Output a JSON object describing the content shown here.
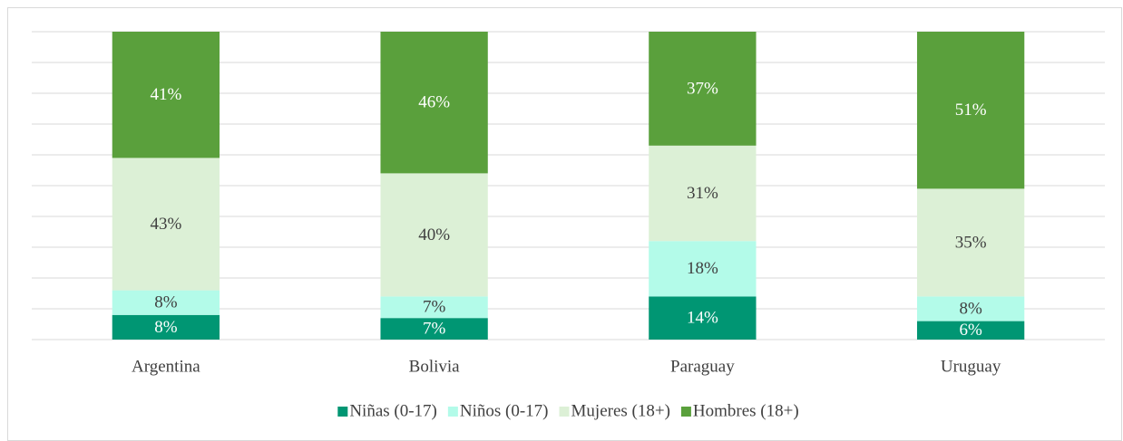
{
  "chart_data": {
    "type": "stacked_bar",
    "categories": [
      "Argentina",
      "Bolivia",
      "Paraguay",
      "Uruguay"
    ],
    "series": [
      {
        "name": "Niñas (0-17)",
        "color": "#009673",
        "values": [
          8,
          7,
          14,
          6
        ],
        "value_labels": [
          "8%",
          "7%",
          "14%",
          "6%"
        ]
      },
      {
        "name": "Niños (0-17)",
        "color": "#b3fbe9",
        "values": [
          8,
          7,
          18,
          8
        ],
        "value_labels": [
          "8%",
          "7%",
          "18%",
          "8%"
        ]
      },
      {
        "name": "Mujeres (18+)",
        "color": "#dcf0d6",
        "values": [
          43,
          40,
          31,
          35
        ],
        "value_labels": [
          "43%",
          "40%",
          "31%",
          "35%"
        ]
      },
      {
        "name": "Hombres (18+)",
        "color": "#5aa03c",
        "values": [
          41,
          46,
          37,
          51
        ],
        "value_labels": [
          "41%",
          "46%",
          "37%",
          "51%"
        ]
      }
    ],
    "ylim": [
      0,
      100
    ],
    "yticks": [
      0,
      10,
      20,
      30,
      40,
      50,
      60,
      70,
      80,
      90,
      100
    ],
    "grid": true,
    "legend": "bottom"
  }
}
